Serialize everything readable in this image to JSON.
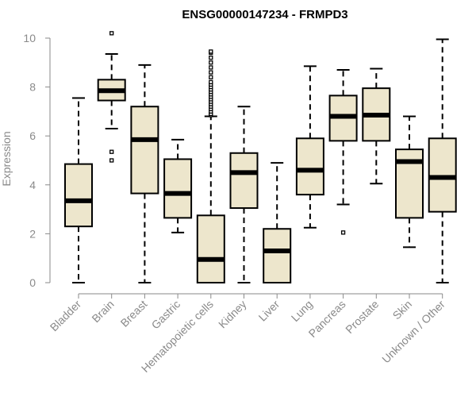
{
  "chart_data": {
    "type": "box",
    "title": "ENSG00000147234 - FRMPD3",
    "xlabel": "",
    "ylabel": "Expression",
    "ylim": [
      0,
      10
    ],
    "yticks": [
      0,
      2,
      4,
      6,
      8,
      10
    ],
    "box_fill": "#ede6cc",
    "categories": [
      "Bladder",
      "Brain",
      "Breast",
      "Gastric",
      "Hematopoietic cells",
      "Kidney",
      "Liver",
      "Lung",
      "Pancreas",
      "Prostate",
      "Skin",
      "Unknown / Other"
    ],
    "boxes": [
      {
        "min": 0.0,
        "q1": 2.3,
        "median": 3.35,
        "q3": 4.85,
        "max": 7.55,
        "outliers": []
      },
      {
        "min": 6.3,
        "q1": 7.45,
        "median": 7.85,
        "q3": 8.3,
        "max": 9.35,
        "outliers": [
          10.2,
          5.35,
          5.0
        ]
      },
      {
        "min": 0.0,
        "q1": 3.65,
        "median": 5.85,
        "q3": 7.2,
        "max": 8.9,
        "outliers": []
      },
      {
        "min": 2.05,
        "q1": 2.65,
        "median": 3.65,
        "q3": 5.05,
        "max": 5.85,
        "outliers": []
      },
      {
        "min": 0.0,
        "q1": 0.0,
        "median": 0.95,
        "q3": 2.75,
        "max": 6.8,
        "outliers": [
          6.85,
          6.9,
          7.0,
          7.1,
          7.2,
          7.3,
          7.4,
          7.5,
          7.6,
          7.7,
          7.8,
          7.9,
          8.0,
          8.1,
          8.2,
          8.4,
          8.6,
          8.8,
          9.0,
          9.2,
          9.4,
          9.45
        ]
      },
      {
        "min": 0.0,
        "q1": 3.05,
        "median": 4.5,
        "q3": 5.3,
        "max": 7.2,
        "outliers": []
      },
      {
        "min": 0.0,
        "q1": 0.0,
        "median": 1.3,
        "q3": 2.2,
        "max": 4.9,
        "outliers": []
      },
      {
        "min": 2.25,
        "q1": 3.6,
        "median": 4.6,
        "q3": 5.9,
        "max": 8.85,
        "outliers": []
      },
      {
        "min": 3.2,
        "q1": 5.8,
        "median": 6.8,
        "q3": 7.65,
        "max": 8.7,
        "outliers": [
          2.05
        ]
      },
      {
        "min": 4.05,
        "q1": 5.8,
        "median": 6.85,
        "q3": 7.95,
        "max": 8.75,
        "outliers": []
      },
      {
        "min": 1.45,
        "q1": 2.65,
        "median": 4.95,
        "q3": 5.45,
        "max": 6.8,
        "outliers": []
      },
      {
        "min": 0.0,
        "q1": 2.9,
        "median": 4.3,
        "q3": 5.9,
        "max": 9.95,
        "outliers": []
      }
    ]
  }
}
